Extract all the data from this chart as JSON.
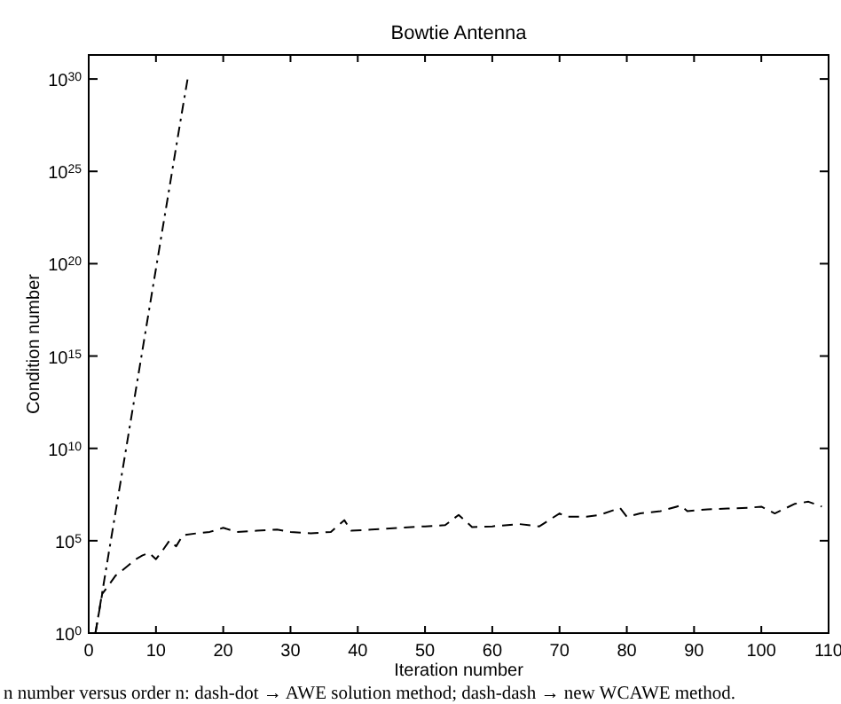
{
  "chart_data": {
    "type": "line",
    "title": "Bowtie Antenna",
    "xlabel": "Iteration number",
    "ylabel": "Condition number",
    "log": "y",
    "grid": false,
    "xlim": [
      0,
      110
    ],
    "xticks": [
      0,
      10,
      20,
      30,
      40,
      50,
      60,
      70,
      80,
      90,
      100,
      110
    ],
    "ylim": [
      1,
      2e+31
    ],
    "yticks": [
      {
        "value": 1,
        "label": "10$^{0}$"
      },
      {
        "value": 100000.0,
        "label": "10$^{5}$"
      },
      {
        "value": 10000000000.0,
        "label": "10$^{10}$"
      },
      {
        "value": 1000000000000000.0,
        "label": "10$^{15}$"
      },
      {
        "value": 1e+20,
        "label": "10$^{20}$"
      },
      {
        "value": 1e+25,
        "label": "10$^{25}$"
      },
      {
        "value": 1e+30,
        "label": "10$^{30}$"
      }
    ],
    "series": [
      {
        "color": "#000000",
        "line_style": "dashdot",
        "x": [
          1,
          2,
          3,
          4,
          5,
          6,
          7,
          8,
          9,
          10,
          11,
          12,
          13,
          14,
          14.8
        ],
        "values": [
          1,
          150.0,
          24000.0,
          3700000.0,
          580000000.0,
          90000000000.0,
          14000000000000.0,
          2200000000000000.0,
          3.5e+17,
          5.4e+19,
          8.5e+21,
          1.3e+24,
          2.1e+26,
          3.2e+28,
          1.6e+30
        ]
      },
      {
        "color": "#000000",
        "line_style": "dashed",
        "x": [
          1,
          2,
          3,
          4,
          5,
          6,
          7,
          8,
          9,
          10,
          11,
          12,
          13,
          14,
          16,
          18,
          20,
          22,
          25,
          28,
          30,
          33,
          36,
          38,
          39,
          42,
          46,
          50,
          53,
          55,
          57,
          60,
          64,
          67,
          70,
          71,
          74,
          76,
          79,
          80,
          82,
          85,
          88,
          89,
          92,
          95,
          98,
          100,
          102,
          105,
          107,
          109
        ],
        "values": [
          1,
          130.0,
          400.0,
          1300.0,
          2500.0,
          5000.0,
          10000.0,
          16000.0,
          22000.0,
          10000.0,
          30000.0,
          100000.0,
          50000.0,
          200000.0,
          250000.0,
          300000.0,
          500000.0,
          300000.0,
          350000.0,
          400000.0,
          300000.0,
          250000.0,
          300000.0,
          1300000.0,
          350000.0,
          400000.0,
          500000.0,
          600000.0,
          700000.0,
          2500000.0,
          550000.0,
          600000.0,
          800000.0,
          600000.0,
          3000000.0,
          2000000.0,
          2000000.0,
          2500000.0,
          6000000.0,
          2000000.0,
          3000000.0,
          4000000.0,
          8000000.0,
          4000000.0,
          5000000.0,
          5500000.0,
          6000000.0,
          7000000.0,
          3000000.0,
          10000000.0,
          13000000.0,
          7000000.0
        ]
      }
    ],
    "annotations": [
      "n number versus order n: dash-dot → AWE solution method; dash-dash → new WCAWE method."
    ]
  }
}
